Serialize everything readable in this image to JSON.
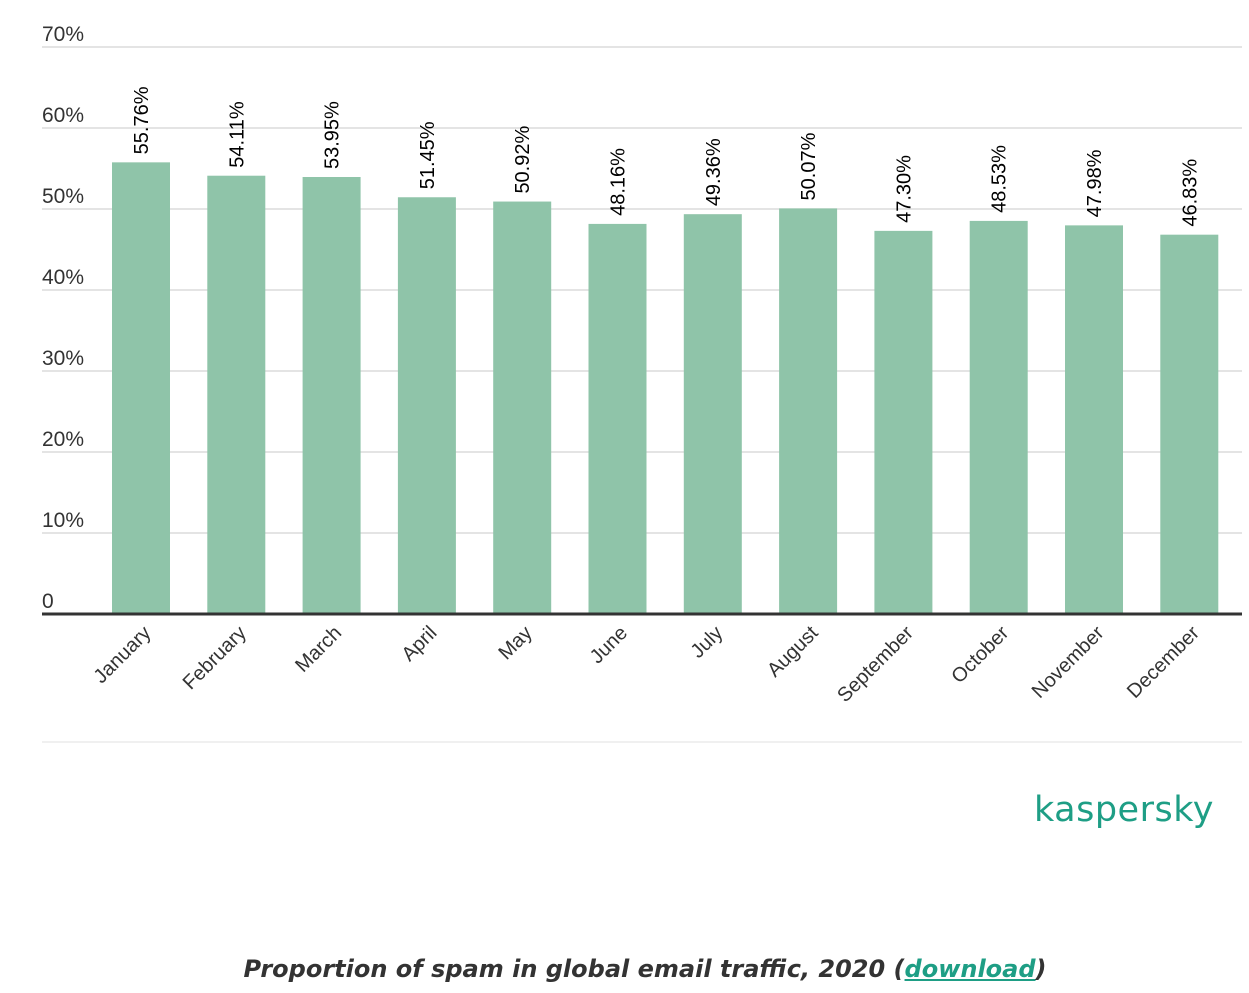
{
  "chart_data": {
    "type": "bar",
    "categories": [
      "January",
      "February",
      "March",
      "April",
      "May",
      "June",
      "July",
      "August",
      "September",
      "October",
      "November",
      "December"
    ],
    "values": [
      55.76,
      54.11,
      53.95,
      51.45,
      50.92,
      48.16,
      49.36,
      50.07,
      47.3,
      48.53,
      47.98,
      46.83
    ],
    "data_labels": [
      "55.76%",
      "54.11%",
      "53.95%",
      "51.45%",
      "50.92%",
      "48.16%",
      "49.36%",
      "50.07%",
      "47.30%",
      "48.53%",
      "47.98%",
      "46.83%"
    ],
    "y_ticks": [
      {
        "value": 0,
        "label": "0"
      },
      {
        "value": 10,
        "label": "10%"
      },
      {
        "value": 20,
        "label": "20%"
      },
      {
        "value": 30,
        "label": "30%"
      },
      {
        "value": 40,
        "label": "40%"
      },
      {
        "value": 50,
        "label": "50%"
      },
      {
        "value": 60,
        "label": "60%"
      },
      {
        "value": 70,
        "label": "70%"
      }
    ],
    "ylim": [
      0,
      70
    ],
    "grid": true,
    "bar_color": "#8fc4a9",
    "title": "",
    "xlabel": "",
    "ylabel": ""
  },
  "logo": {
    "text": "kaspersky",
    "color": "#1e9e85"
  },
  "caption": {
    "text": "Proportion of spam in global email traffic, 2020 (",
    "link_label": "download",
    "suffix": ")"
  }
}
